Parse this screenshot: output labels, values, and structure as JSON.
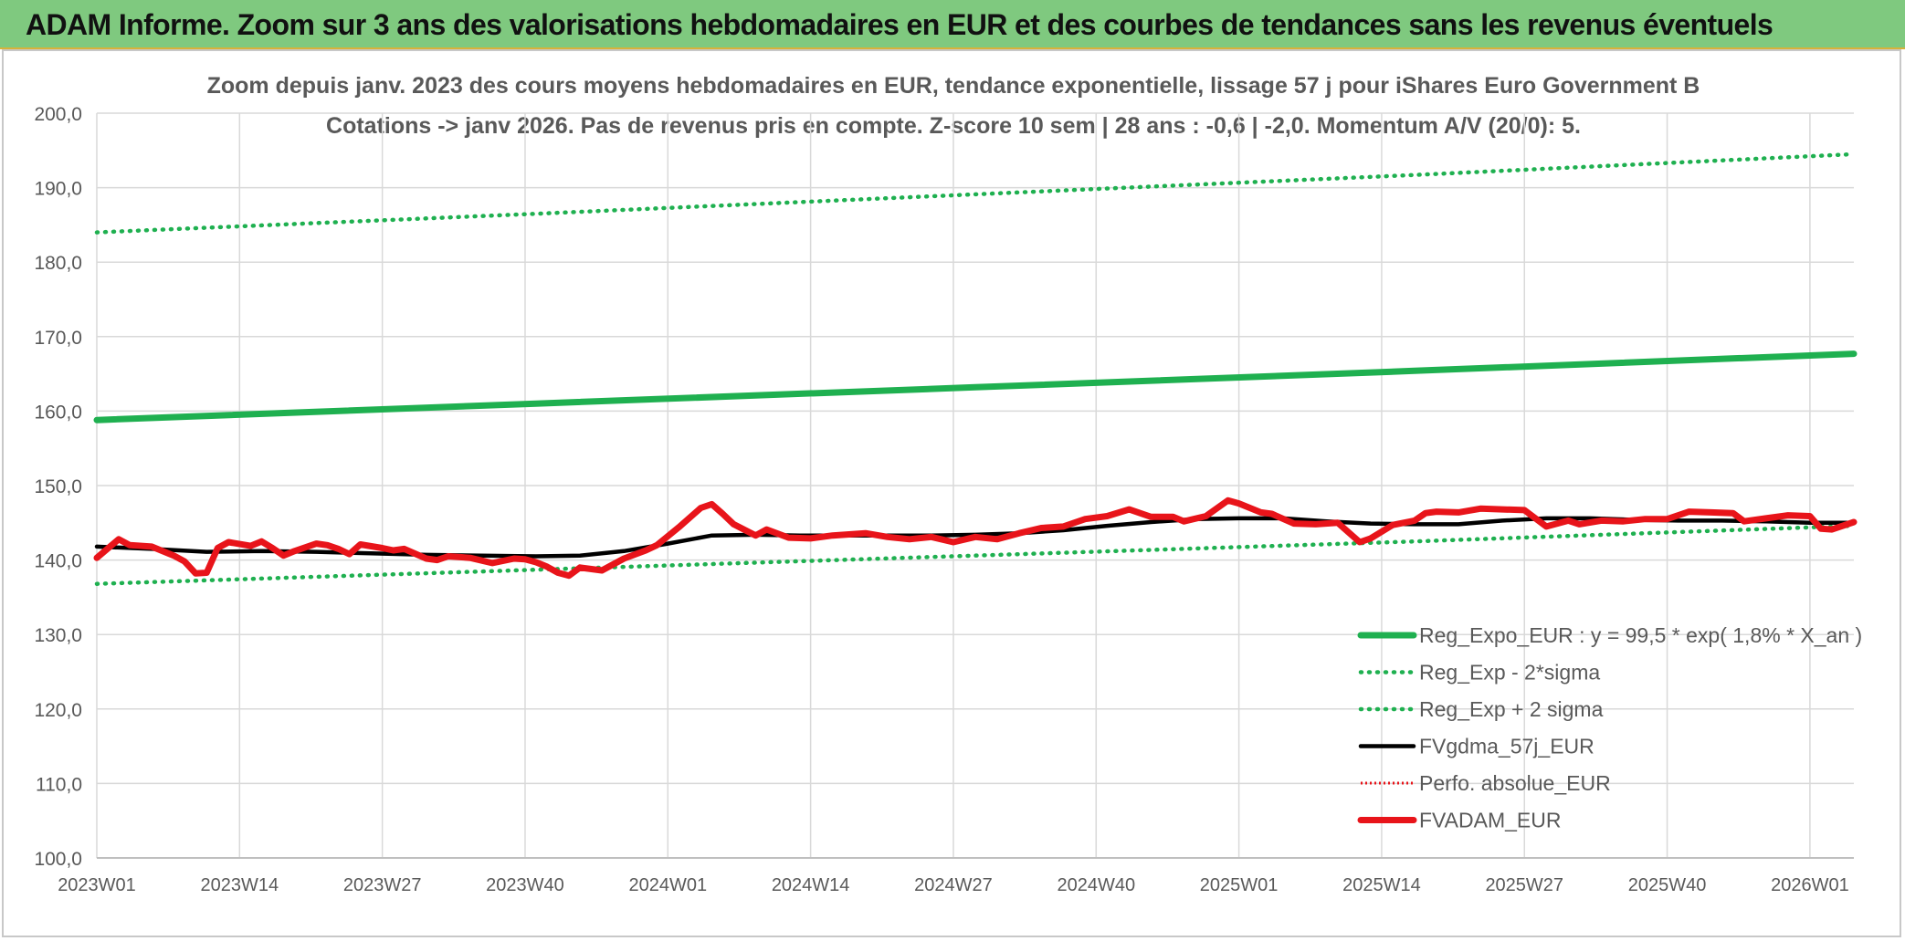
{
  "header": {
    "title": "ADAM Informe. Zoom sur 3 ans des valorisations hebdomadaires en EUR et des courbes de tendances sans les revenus éventuels"
  },
  "chart_data": {
    "type": "line",
    "title_line1": "Zoom depuis janv. 2023 des cours moyens hebdomadaires en EUR, tendance exponentielle, lissage 57 j pour iShares Euro Government B",
    "title_line2": "Cotations -> janv 2026. Pas de revenus pris en compte. Z-score 10 sem | 28 ans : -0,6 | -2,0. Momentum A/V (20/0): 5.",
    "ylim": [
      100,
      200
    ],
    "yticks": [
      "100,0",
      "110,0",
      "120,0",
      "130,0",
      "140,0",
      "150,0",
      "160,0",
      "170,0",
      "180,0",
      "190,0",
      "200,0"
    ],
    "xticks": [
      "2023W01",
      "2023W14",
      "2023W27",
      "2023W40",
      "2024W01",
      "2024W14",
      "2024W27",
      "2024W40",
      "2025W01",
      "2025W14",
      "2025W27",
      "2025W40",
      "2026W01"
    ],
    "x_range_weeks": [
      0,
      160
    ],
    "grid": true,
    "legend_position": "bottom-right",
    "colors": {
      "green": "#1fb050",
      "black": "#000000",
      "red": "#e8141a"
    },
    "series": [
      {
        "name": "Reg_Expo_EUR : y = 99,5 * exp( 1,8% *  X_an )",
        "style": "thick-solid",
        "color": "#1fb050",
        "x": [
          0,
          40,
          80,
          120,
          160
        ],
        "y": [
          158.8,
          161.0,
          163.2,
          165.4,
          167.7
        ]
      },
      {
        "name": "Reg_Exp - 2*sigma",
        "style": "dotted",
        "color": "#1fb050",
        "x": [
          0,
          40,
          80,
          120,
          160
        ],
        "y": [
          136.8,
          138.7,
          140.6,
          142.5,
          144.6
        ]
      },
      {
        "name": "Reg_Exp + 2 sigma",
        "style": "dotted",
        "color": "#1fb050",
        "x": [
          0,
          40,
          80,
          120,
          160
        ],
        "y": [
          184.0,
          186.5,
          189.1,
          191.7,
          194.5
        ]
      },
      {
        "name": "FVgdma_57j_EUR",
        "style": "solid",
        "color": "#000000",
        "x": [
          0,
          5,
          10,
          15,
          20,
          25,
          30,
          35,
          40,
          44,
          48,
          52,
          56,
          60,
          64,
          68,
          72,
          76,
          80,
          84,
          88,
          92,
          96,
          100,
          104,
          108,
          112,
          116,
          120,
          124,
          128,
          132,
          136,
          140,
          144,
          148,
          152,
          156,
          160
        ],
        "y": [
          141.8,
          141.5,
          141.1,
          141.2,
          141.1,
          140.9,
          140.7,
          140.6,
          140.5,
          140.6,
          141.2,
          142.2,
          143.3,
          143.4,
          143.3,
          143.3,
          143.3,
          143.3,
          143.4,
          143.6,
          144.0,
          144.6,
          145.1,
          145.5,
          145.6,
          145.6,
          145.2,
          144.9,
          144.8,
          144.8,
          145.3,
          145.6,
          145.6,
          145.4,
          145.3,
          145.3,
          145.2,
          145.0,
          145.0
        ]
      },
      {
        "name": "Perfo. absolue_EUR",
        "style": "dotted-thin",
        "color": "#e8141a",
        "x": [],
        "y": []
      },
      {
        "name": "FVADAM_EUR",
        "style": "thick-solid",
        "color": "#e8141a",
        "x": [
          0,
          2,
          3,
          5,
          7,
          8,
          9,
          10,
          11,
          12,
          14,
          15,
          16,
          17,
          18,
          20,
          21,
          22,
          23,
          24,
          26,
          27,
          28,
          30,
          31,
          32,
          34,
          36,
          38,
          39,
          40,
          41,
          42,
          43,
          44,
          46,
          48,
          50,
          51,
          53,
          55,
          56,
          57,
          58,
          60,
          61,
          63,
          65,
          67,
          70,
          72,
          74,
          76,
          78,
          80,
          82,
          84,
          86,
          88,
          90,
          92,
          94,
          96,
          98,
          99,
          101,
          103,
          104,
          106,
          107,
          109,
          111,
          113,
          115,
          116,
          118,
          120,
          121,
          122,
          124,
          126,
          128,
          130,
          132,
          134,
          135,
          137,
          139,
          141,
          143,
          145,
          147,
          149,
          150,
          152,
          154,
          156,
          157,
          158,
          160
        ],
        "y": [
          140.3,
          142.8,
          142.0,
          141.8,
          140.6,
          139.8,
          138.2,
          138.3,
          141.6,
          142.4,
          141.9,
          142.5,
          141.6,
          140.6,
          141.2,
          142.2,
          142.0,
          141.5,
          140.8,
          142.1,
          141.6,
          141.3,
          141.5,
          140.2,
          140.0,
          140.5,
          140.3,
          139.6,
          140.2,
          140.1,
          139.7,
          139.1,
          138.3,
          137.9,
          139.0,
          138.6,
          140.2,
          141.3,
          142.0,
          144.4,
          147.0,
          147.5,
          146.2,
          144.8,
          143.3,
          144.1,
          143.0,
          142.9,
          143.3,
          143.6,
          143.1,
          142.8,
          143.1,
          142.4,
          143.1,
          142.8,
          143.6,
          144.3,
          144.5,
          145.5,
          145.9,
          146.8,
          145.8,
          145.8,
          145.2,
          145.9,
          148.0,
          147.6,
          146.4,
          146.2,
          144.9,
          144.8,
          145.0,
          142.4,
          142.9,
          144.7,
          145.3,
          146.3,
          146.5,
          146.4,
          146.9,
          146.8,
          146.7,
          144.5,
          145.3,
          144.8,
          145.3,
          145.2,
          145.5,
          145.5,
          146.5,
          146.4,
          146.3,
          145.2,
          145.6,
          146.0,
          145.9,
          144.2,
          144.1,
          145.1
        ]
      }
    ]
  }
}
